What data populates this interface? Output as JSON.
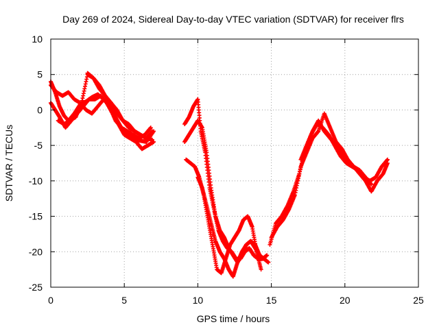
{
  "chart_data": {
    "type": "scatter",
    "title": "Day 269 of 2024, Sidereal Day-to-day VTEC variation (SDTVAR) for receiver flrs",
    "xlabel": "GPS time / hours",
    "ylabel": "SDTVAR / TECUs",
    "xlim": [
      0,
      25
    ],
    "ylim": [
      -25,
      10
    ],
    "xticks": [
      "0",
      "5",
      "10",
      "15",
      "20",
      "25"
    ],
    "yticks": [
      "10",
      "5",
      "0",
      "-5",
      "-10",
      "-15",
      "-20",
      "-25"
    ],
    "grid": true,
    "marker": "plus",
    "colors": {
      "series": "#ff0000",
      "grid": "#a0a0a0",
      "axes": "#000000"
    },
    "series": [
      {
        "x": [
          0.0,
          0.3,
          0.6,
          0.9,
          1.2,
          1.6,
          2.0,
          2.4,
          2.8,
          3.2,
          3.6,
          4.0,
          4.4,
          4.8,
          5.2,
          5.6,
          6.0,
          6.5,
          7.0
        ],
        "y": [
          4.0,
          2.5,
          0.5,
          -0.8,
          -1.5,
          -0.5,
          0.8,
          1.2,
          1.8,
          2.2,
          1.5,
          0.5,
          -1.0,
          -2.5,
          -3.5,
          -4.0,
          -4.3,
          -4.5,
          -3.0
        ]
      },
      {
        "x": [
          0.0,
          0.3,
          0.6,
          1.0,
          1.4,
          1.8,
          2.2,
          2.6,
          3.0,
          3.4,
          3.8,
          4.2,
          4.6,
          5.0,
          5.4,
          5.8,
          6.2,
          6.6,
          7.0
        ],
        "y": [
          1.0,
          0.0,
          -1.0,
          -2.5,
          -1.5,
          -0.5,
          0.5,
          1.5,
          1.5,
          2.0,
          1.0,
          -0.5,
          -2.0,
          -3.5,
          -4.0,
          -4.5,
          -5.5,
          -5.0,
          -4.5
        ]
      },
      {
        "x": [
          0.0,
          0.4,
          0.8,
          1.2,
          1.6,
          2.0,
          2.4,
          2.8,
          3.2,
          3.6,
          4.0,
          4.4,
          4.8,
          5.2,
          5.6,
          6.0,
          6.4,
          6.8
        ],
        "y": [
          3.5,
          2.5,
          2.0,
          2.5,
          1.5,
          1.0,
          0.0,
          -0.5,
          0.5,
          1.5,
          0.5,
          -1.5,
          -2.5,
          -3.0,
          -3.5,
          -4.0,
          -3.5,
          -2.5
        ]
      },
      {
        "x": [
          0.5,
          0.9,
          1.3,
          1.7,
          2.1,
          2.5,
          2.9,
          3.3,
          3.7,
          4.1,
          4.5,
          4.9,
          5.3,
          5.7,
          6.1,
          6.5,
          6.9
        ],
        "y": [
          -1.5,
          -2.0,
          -1.5,
          -1.0,
          1.0,
          5.0,
          4.5,
          3.0,
          2.0,
          1.0,
          -0.5,
          -1.5,
          -2.0,
          -3.0,
          -3.5,
          -4.0,
          -3.0
        ]
      },
      {
        "x": [
          2.5,
          2.9,
          3.3,
          3.7,
          4.1,
          4.5,
          4.9,
          5.3,
          5.7,
          6.1,
          6.5,
          6.9
        ],
        "y": [
          5.2,
          4.5,
          3.5,
          2.0,
          1.0,
          0.0,
          -1.5,
          -2.5,
          -3.0,
          -3.5,
          -4.0,
          -4.2
        ]
      },
      {
        "x": [
          9.1,
          9.4,
          9.7,
          10.0,
          10.2,
          10.5,
          10.8,
          11.1,
          11.4,
          11.7,
          12.0,
          12.3,
          12.6,
          12.9,
          13.2,
          13.5,
          13.8,
          14.1,
          14.4,
          14.7
        ],
        "y": [
          -2.0,
          -1.0,
          0.5,
          1.5,
          -3.0,
          -6.0,
          -11.0,
          -14.0,
          -17.0,
          -18.5,
          -19.5,
          -20.0,
          -21.0,
          -21.0,
          -20.0,
          -19.5,
          -20.5,
          -21.0,
          -21.0,
          -20.5
        ]
      },
      {
        "x": [
          9.1,
          9.4,
          9.7,
          10.0,
          10.3,
          10.6,
          10.9,
          11.2,
          11.5,
          11.8,
          12.1,
          12.4,
          12.7,
          13.0,
          13.3,
          13.6,
          13.9,
          14.2,
          14.5,
          14.8
        ],
        "y": [
          -4.5,
          -3.5,
          -2.5,
          -1.5,
          -2.5,
          -6.0,
          -11.0,
          -15.0,
          -17.0,
          -18.0,
          -19.5,
          -20.5,
          -21.5,
          -20.5,
          -19.0,
          -18.5,
          -19.5,
          -20.5,
          -21.0,
          -21.5
        ]
      },
      {
        "x": [
          9.2,
          9.5,
          9.8,
          10.1,
          10.4,
          10.7,
          11.0,
          11.3,
          11.6,
          11.9,
          12.2,
          12.5,
          12.8,
          13.1,
          13.4,
          13.7,
          14.0,
          14.3
        ],
        "y": [
          -7.0,
          -7.5,
          -8.0,
          -9.5,
          -12.0,
          -15.5,
          -19.0,
          -22.5,
          -23.0,
          -21.0,
          -19.0,
          -18.0,
          -17.0,
          -15.5,
          -15.0,
          -16.5,
          -20.0,
          -22.5
        ]
      },
      {
        "x": [
          10.0,
          10.3,
          10.6,
          10.9,
          11.2,
          11.5,
          11.8,
          12.1,
          12.4,
          12.7,
          13.0,
          13.3,
          13.6,
          13.9,
          14.2,
          14.5
        ],
        "y": [
          -9.5,
          -11.0,
          -13.5,
          -16.0,
          -18.5,
          -20.0,
          -21.0,
          -22.5,
          -23.5,
          -21.5,
          -20.0,
          -19.0,
          -18.5,
          -19.0,
          -20.5,
          -21.0
        ]
      },
      {
        "x": [
          14.9,
          15.3,
          15.7,
          16.1,
          16.5,
          16.9,
          17.3,
          17.7,
          18.1,
          18.5,
          18.9,
          19.3,
          19.7,
          20.1,
          20.5,
          20.9,
          21.3,
          21.7,
          22.1,
          22.5,
          22.9
        ],
        "y": [
          -19.0,
          -16.0,
          -15.0,
          -13.5,
          -11.5,
          -9.0,
          -5.5,
          -3.5,
          -2.0,
          -2.5,
          -3.5,
          -5.0,
          -6.5,
          -7.5,
          -8.0,
          -8.5,
          -9.5,
          -10.0,
          -9.5,
          -8.0,
          -7.0
        ]
      },
      {
        "x": [
          15.0,
          15.4,
          15.8,
          16.2,
          16.6,
          17.0,
          17.4,
          17.8,
          18.2,
          18.6,
          19.0,
          19.4,
          19.8,
          20.2,
          20.6,
          21.0,
          21.4,
          21.8,
          22.2,
          22.6,
          22.9
        ],
        "y": [
          -18.0,
          -16.5,
          -15.5,
          -14.0,
          -12.0,
          -8.0,
          -6.0,
          -4.0,
          -3.0,
          -0.5,
          -2.5,
          -4.5,
          -5.5,
          -7.0,
          -8.0,
          -9.0,
          -10.0,
          -11.5,
          -10.0,
          -9.0,
          -7.5
        ]
      },
      {
        "x": [
          17.0,
          17.4,
          17.8,
          18.2,
          18.6,
          19.0,
          19.4,
          19.8,
          20.2,
          20.6,
          21.0,
          21.4,
          21.8
        ],
        "y": [
          -7.0,
          -5.0,
          -3.0,
          -1.5,
          -3.0,
          -4.0,
          -5.0,
          -6.0,
          -7.5,
          -8.0,
          -8.5,
          -9.5,
          -10.5
        ]
      }
    ]
  }
}
